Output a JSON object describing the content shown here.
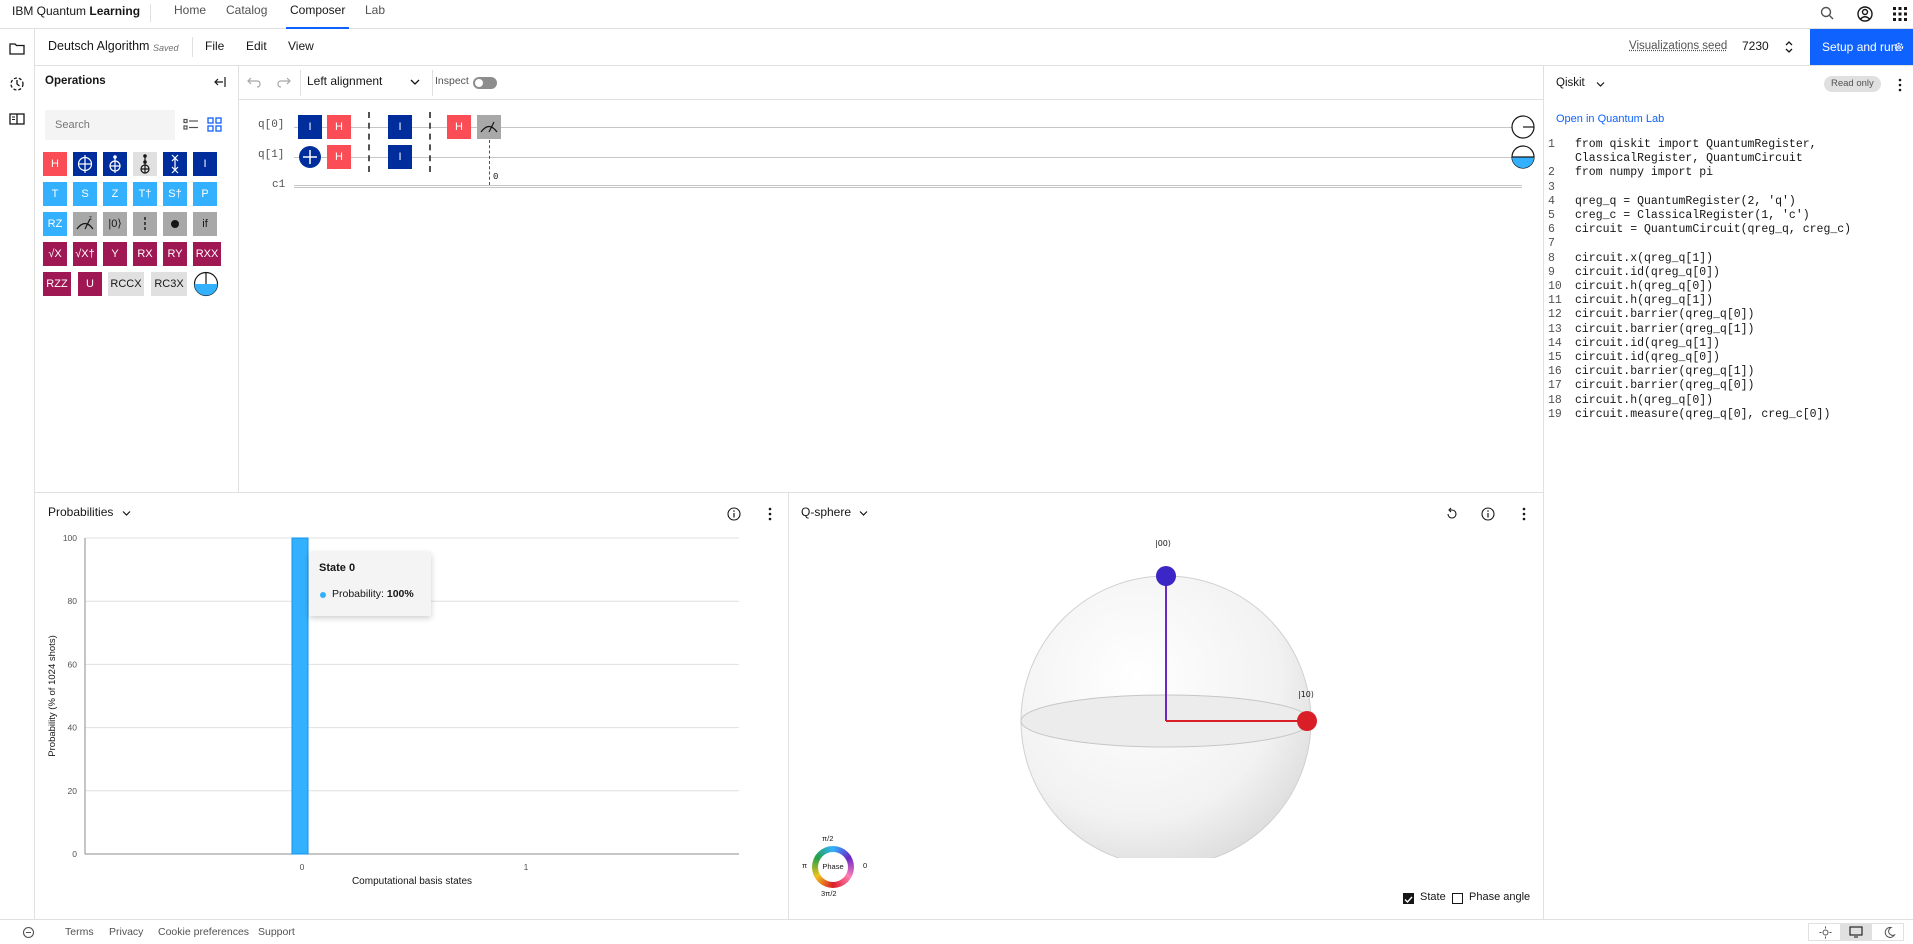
{
  "nav": {
    "brand_prefix": "IBM Quantum ",
    "brand_bold": "Learning",
    "tabs": [
      "Home",
      "Catalog",
      "Composer",
      "Lab"
    ],
    "active_tab": "Composer"
  },
  "file": {
    "name": "Deutsch Algorithm",
    "status": "Saved",
    "menus": [
      "File",
      "Edit",
      "View"
    ],
    "viz_seed_label": "Visualizations seed",
    "viz_seed_value": "7230",
    "setup_run": "Setup and run"
  },
  "operations": {
    "title": "Operations",
    "search_placeholder": "Search",
    "gates": [
      [
        "H",
        "CX",
        "CCX",
        "SWAP-ish",
        "SWAP",
        "I"
      ],
      [
        "T",
        "S",
        "Z",
        "T†",
        "S†",
        "P"
      ],
      [
        "RZ",
        "MEASURE",
        "|0⟩",
        "BARRIER",
        "CONTROL",
        "if"
      ],
      [
        "√X",
        "√X†",
        "Y",
        "RX",
        "RY",
        "RXX"
      ],
      [
        "RZZ",
        "U",
        "RCCX",
        "RC3X",
        "PROBE"
      ]
    ]
  },
  "circuit_toolbar": {
    "alignment": "Left alignment",
    "inspect": "Inspect"
  },
  "circuit": {
    "qubits": [
      "q[0]",
      "q[1]",
      "c1"
    ],
    "measure_bit": "0"
  },
  "code": {
    "language": "Qiskit",
    "read_only": "Read only",
    "open_lab": "Open in Quantum Lab",
    "lines": [
      {
        "n": "1",
        "text": "from qiskit import QuantumRegister,"
      },
      {
        "n": "",
        "text": "ClassicalRegister, QuantumCircuit"
      },
      {
        "n": "2",
        "text": "from numpy import pi"
      },
      {
        "n": "3",
        "text": ""
      },
      {
        "n": "4",
        "text": "qreg_q = QuantumRegister(2, 'q')"
      },
      {
        "n": "5",
        "text": "creg_c = ClassicalRegister(1, 'c')"
      },
      {
        "n": "6",
        "text": "circuit = QuantumCircuit(qreg_q, creg_c)"
      },
      {
        "n": "7",
        "text": ""
      },
      {
        "n": "8",
        "text": "circuit.x(qreg_q[1])"
      },
      {
        "n": "9",
        "text": "circuit.id(qreg_q[0])"
      },
      {
        "n": "10",
        "text": "circuit.h(qreg_q[0])"
      },
      {
        "n": "11",
        "text": "circuit.h(qreg_q[1])"
      },
      {
        "n": "12",
        "text": "circuit.barrier(qreg_q[0])"
      },
      {
        "n": "13",
        "text": "circuit.barrier(qreg_q[1])"
      },
      {
        "n": "14",
        "text": "circuit.id(qreg_q[1])"
      },
      {
        "n": "15",
        "text": "circuit.id(qreg_q[0])"
      },
      {
        "n": "16",
        "text": "circuit.barrier(qreg_q[1])"
      },
      {
        "n": "17",
        "text": "circuit.barrier(qreg_q[0])"
      },
      {
        "n": "18",
        "text": "circuit.h(qreg_q[0])"
      },
      {
        "n": "19",
        "text": "circuit.measure(qreg_q[0], creg_c[0])"
      }
    ]
  },
  "probabilities": {
    "title": "Probabilities",
    "tooltip_title": "State 0",
    "tooltip_label": "Probability: ",
    "tooltip_value": "100%"
  },
  "chart_data": {
    "type": "bar",
    "categories": [
      "0",
      "1"
    ],
    "values": [
      100,
      0
    ],
    "xlabel": "Computational basis states",
    "ylabel": "Probability (% of 1024 shots)",
    "ylim": [
      0,
      100
    ],
    "yticks": [
      0,
      20,
      40,
      60,
      80,
      100
    ],
    "grid": true,
    "bar_color": "#33b1ff"
  },
  "qsphere": {
    "title": "Q-sphere",
    "state_00": "|00⟩",
    "state_10": "|10⟩",
    "phase_label": "Phase",
    "phase_top": "π/2",
    "phase_bottom": "3π/2",
    "phase_left": "π",
    "phase_right": "0",
    "state_checkbox": "State",
    "phase_angle_checkbox": "Phase angle"
  },
  "footer": {
    "links": [
      "Terms",
      "Privacy",
      "Cookie preferences",
      "Support"
    ]
  },
  "colors": {
    "accent": "#0f62fe",
    "gate_red": "#fa4d56",
    "gate_dark_blue": "#002d9c",
    "gate_light_blue": "#33b1ff",
    "gate_magenta": "#9f1853"
  }
}
